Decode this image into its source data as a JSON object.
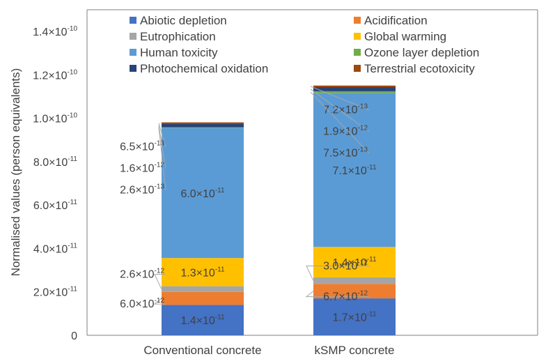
{
  "chart_data": {
    "type": "bar",
    "stacked": true,
    "categories": [
      "Conventional concrete",
      "kSMP concrete"
    ],
    "ylabel": "Normalised values (person equivalents)",
    "ylim": [
      0,
      1.5e-10
    ],
    "yticks": [
      {
        "label": "0",
        "value": 0
      },
      {
        "label": "2.0×10",
        "exp": "-11",
        "value": 2e-11
      },
      {
        "label": "4.0×10",
        "exp": "-11",
        "value": 4e-11
      },
      {
        "label": "6.0×10",
        "exp": "-11",
        "value": 6e-11
      },
      {
        "label": "8.0×10",
        "exp": "-11",
        "value": 8e-11
      },
      {
        "label": "1.0×10",
        "exp": "-10",
        "value": 1e-10
      },
      {
        "label": "1.2×10",
        "exp": "-10",
        "value": 1.2e-10
      },
      {
        "label": "1.4×10",
        "exp": "-10",
        "value": 1.4e-10
      }
    ],
    "grid": false,
    "legend_position": "top",
    "series": [
      {
        "name": "Abiotic depletion",
        "color": "#4472C4",
        "values": [
          1.4e-11,
          1.7e-11
        ]
      },
      {
        "name": "Acidification",
        "color": "#ED7D31",
        "values": [
          6e-12,
          6.7e-12
        ]
      },
      {
        "name": "Eutrophication",
        "color": "#A5A5A5",
        "values": [
          2.6e-12,
          3e-12
        ]
      },
      {
        "name": "Global warming",
        "color": "#FFC000",
        "values": [
          1.3e-11,
          1.4e-11
        ]
      },
      {
        "name": "Human toxicity",
        "color": "#5B9BD5",
        "values": [
          6e-11,
          7.1e-11
        ]
      },
      {
        "name": "Ozone layer depletion",
        "color": "#70AD47",
        "values": [
          2.6e-13,
          7.5e-13
        ]
      },
      {
        "name": "Photochemical oxidation",
        "color": "#264478",
        "values": [
          1.6e-12,
          1.9e-12
        ]
      },
      {
        "name": "Terrestrial ecotoxicity",
        "color": "#9E480E",
        "values": [
          6.5e-13,
          7.2e-13
        ]
      }
    ],
    "inside_labels": [
      [
        {
          "series": 0,
          "base": "1.4×10",
          "exp": "-11"
        },
        {
          "series": 3,
          "base": "1.3×10",
          "exp": "-11"
        },
        {
          "series": 4,
          "base": "6.0×10",
          "exp": "-11"
        }
      ],
      [
        {
          "series": 0,
          "base": "1.7×10",
          "exp": "-11"
        },
        {
          "series": 3,
          "base": "1.4×10",
          "exp": "-11"
        },
        {
          "series": 4,
          "base": "7.1×10",
          "exp": "-11"
        }
      ]
    ],
    "callouts": [
      [
        {
          "series": 1,
          "base": "6.0×10",
          "exp": "-12"
        },
        {
          "series": 2,
          "base": "2.6×10",
          "exp": "-12"
        },
        {
          "series": 5,
          "base": "2.6×10",
          "exp": "-13"
        },
        {
          "series": 6,
          "base": "1.6×10",
          "exp": "-12"
        },
        {
          "series": 7,
          "base": "6.5×10",
          "exp": "-13"
        }
      ],
      [
        {
          "series": 1,
          "base": "6.7×10",
          "exp": "-12"
        },
        {
          "series": 2,
          "base": "3.0×10",
          "exp": "-12"
        },
        {
          "series": 5,
          "base": "7.5×10",
          "exp": "-13"
        },
        {
          "series": 6,
          "base": "1.9×10",
          "exp": "-12"
        },
        {
          "series": 7,
          "base": "7.2×10",
          "exp": "-13"
        }
      ]
    ]
  }
}
